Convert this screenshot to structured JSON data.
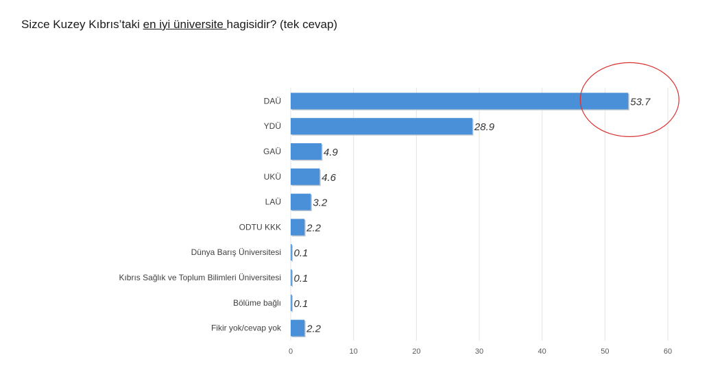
{
  "title": {
    "part1": "Sizce Kuzey Kıbrıs’taki ",
    "underlined": "en iyi üniversite ",
    "part2": "hagisidir? (tek cevap)"
  },
  "chart_data": {
    "type": "bar",
    "orientation": "horizontal",
    "categories": [
      "DAÜ",
      "YDÜ",
      "GAÜ",
      "UKÜ",
      "LAÜ",
      "ODTU KKK",
      "Dünya Barış Üniversitesi",
      "Kıbrıs Sağlık ve Toplum Bilimleri Üniversitesi",
      "Bölüme bağlı",
      "Fikir yok/cevap yok"
    ],
    "values": [
      53.7,
      28.9,
      4.9,
      4.6,
      3.2,
      2.2,
      0.1,
      0.1,
      0.1,
      2.2
    ],
    "data_labels": [
      "53.7",
      "28.9",
      "4.9",
      "4.6",
      "3.2",
      "2.2",
      "0.1",
      "0.1",
      "0.1",
      "2.2"
    ],
    "xlim": [
      0,
      60
    ],
    "x_ticks": [
      "0",
      "10",
      "20",
      "30",
      "40",
      "50",
      "60"
    ],
    "grid": true,
    "bar_color": "#4a90d9",
    "highlight_circle_color": "#d93030",
    "highlight_category": "DAÜ"
  }
}
